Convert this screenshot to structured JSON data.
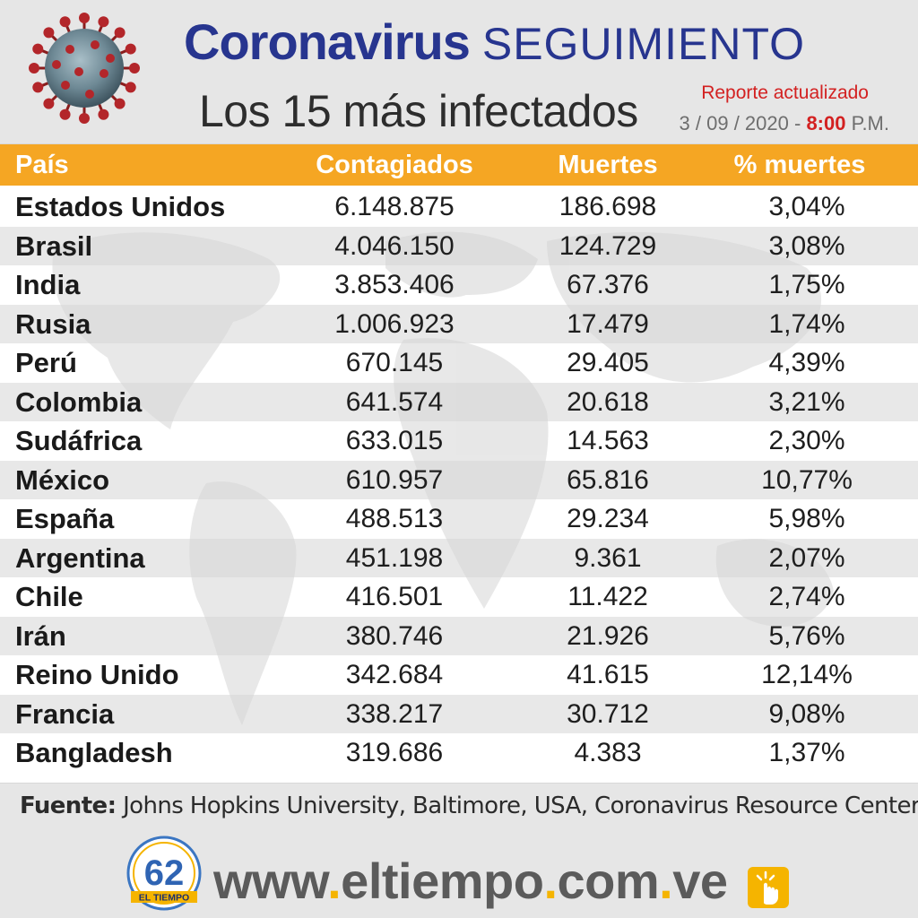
{
  "header": {
    "title_bold": "Coronavirus",
    "title_light": "SEGUIMIENTO",
    "subtitle": "Los 15 más infectados",
    "report_label": "Reporte actualizado",
    "report_date": "3 / 09 / 2020 -",
    "report_time": "8:00",
    "report_ampm": "P.M."
  },
  "table": {
    "columns": [
      "País",
      "Contagiados",
      "Muertes",
      "% muertes"
    ],
    "rows": [
      {
        "country": "Estados Unidos",
        "cases": "6.148.875",
        "deaths": "186.698",
        "pct": "3,04%"
      },
      {
        "country": "Brasil",
        "cases": "4.046.150",
        "deaths": "124.729",
        "pct": "3,08%"
      },
      {
        "country": "India",
        "cases": "3.853.406",
        "deaths": "67.376",
        "pct": "1,75%"
      },
      {
        "country": "Rusia",
        "cases": "1.006.923",
        "deaths": "17.479",
        "pct": "1,74%"
      },
      {
        "country": "Perú",
        "cases": "670.145",
        "deaths": "29.405",
        "pct": "4,39%"
      },
      {
        "country": "Colombia",
        "cases": "641.574",
        "deaths": "20.618",
        "pct": "3,21%"
      },
      {
        "country": "Sudáfrica",
        "cases": "633.015",
        "deaths": "14.563",
        "pct": "2,30%"
      },
      {
        "country": "México",
        "cases": "610.957",
        "deaths": "65.816",
        "pct": "10,77%"
      },
      {
        "country": "España",
        "cases": "488.513",
        "deaths": "29.234",
        "pct": "5,98%"
      },
      {
        "country": "Argentina",
        "cases": "451.198",
        "deaths": "9.361",
        "pct": "2,07%"
      },
      {
        "country": "Chile",
        "cases": "416.501",
        "deaths": "11.422",
        "pct": "2,74%"
      },
      {
        "country": "Irán",
        "cases": "380.746",
        "deaths": "21.926",
        "pct": "5,76%"
      },
      {
        "country": "Reino Unido",
        "cases": "342.684",
        "deaths": "41.615",
        "pct": "12,14%"
      },
      {
        "country": "Francia",
        "cases": "338.217",
        "deaths": "30.712",
        "pct": "9,08%"
      },
      {
        "country": "Bangladesh",
        "cases": "319.686",
        "deaths": "4.383",
        "pct": "1,37%"
      }
    ]
  },
  "footer": {
    "source_label": "Fuente:",
    "source_text": "Johns Hopkins University, Baltimore, USA, Coronavirus Resource Center",
    "logo_number": "62",
    "logo_name": "EL TIEMPO",
    "url_parts": [
      "www",
      ".",
      "eltiempo",
      ".",
      "com",
      ".",
      "ve"
    ]
  },
  "colors": {
    "title_blue": "#27358f",
    "header_orange": "#f5a623",
    "report_red": "#d32121",
    "url_gray": "#5b5b5b",
    "url_dot_yellow": "#f5b400"
  },
  "icons": [
    "coronavirus-illustration",
    "el-tiempo-62-logo",
    "click-hand-icon"
  ]
}
